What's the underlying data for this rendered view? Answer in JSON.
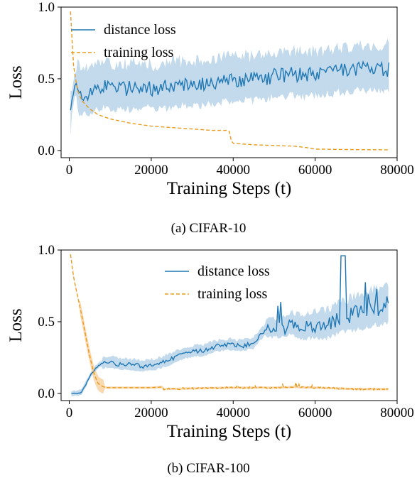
{
  "chart_data": [
    {
      "type": "line",
      "caption": "(a) CIFAR-10",
      "xlabel": "Training Steps (t)",
      "ylabel": "Loss",
      "xlim": [
        -2000,
        80000
      ],
      "ylim": [
        -0.05,
        1.0
      ],
      "xticks": [
        "0",
        "20000",
        "40000",
        "60000",
        "80000"
      ],
      "yticks": [
        "0.0",
        "0.5",
        "1.0"
      ],
      "grid": false,
      "legend": "top-left",
      "colors": {
        "distance": "#1f77b4",
        "distance_band": "#aecde6",
        "training": "#e89b1e"
      },
      "series": [
        {
          "name": "distance loss",
          "style": "solid",
          "band": true,
          "x": [
            300,
            1500,
            3000,
            6000,
            9000,
            12000,
            15000,
            18000,
            21000,
            24000,
            27000,
            30000,
            33000,
            36000,
            39000,
            42000,
            45000,
            48000,
            51000,
            54000,
            57000,
            60000,
            63000,
            66000,
            69000,
            72000,
            75000,
            78000
          ],
          "y": [
            0.3,
            0.46,
            0.38,
            0.43,
            0.45,
            0.43,
            0.44,
            0.45,
            0.43,
            0.44,
            0.46,
            0.46,
            0.46,
            0.48,
            0.49,
            0.5,
            0.49,
            0.51,
            0.52,
            0.53,
            0.52,
            0.53,
            0.54,
            0.55,
            0.56,
            0.57,
            0.56,
            0.57
          ]
        },
        {
          "name": "training loss",
          "style": "dashed",
          "band": false,
          "x": [
            300,
            1000,
            2000,
            3000,
            5000,
            7000,
            10000,
            15000,
            20000,
            25000,
            30000,
            35000,
            39000,
            39500,
            40000,
            45000,
            50000,
            55000,
            58000,
            60000,
            65000,
            70000,
            78000
          ],
          "y": [
            0.97,
            0.6,
            0.42,
            0.35,
            0.29,
            0.25,
            0.22,
            0.19,
            0.17,
            0.16,
            0.15,
            0.14,
            0.14,
            0.07,
            0.05,
            0.04,
            0.035,
            0.03,
            0.02,
            0.01,
            0.008,
            0.006,
            0.005
          ]
        }
      ]
    },
    {
      "type": "line",
      "caption": "(b) CIFAR-100",
      "xlabel": "Training Steps (t)",
      "ylabel": "Loss",
      "xlim": [
        -2000,
        80000
      ],
      "ylim": [
        -0.05,
        1.0
      ],
      "xticks": [
        "0",
        "20000",
        "40000",
        "60000",
        "80000"
      ],
      "yticks": [
        "0.0",
        "0.5",
        "1.0"
      ],
      "grid": false,
      "legend": "top-center",
      "colors": {
        "distance": "#1f77b4",
        "distance_band": "#aecde6",
        "training": "#e89b1e",
        "training_band": "#f6c98f"
      },
      "series": [
        {
          "name": "distance loss",
          "style": "solid",
          "band": true,
          "x": [
            500,
            2000,
            3000,
            4000,
            5000,
            6000,
            7000,
            8000,
            10000,
            12000,
            15000,
            18000,
            21000,
            24000,
            27000,
            30000,
            33000,
            36000,
            39000,
            42000,
            45000,
            48000,
            51000,
            54000,
            57000,
            60000,
            63000,
            66000,
            69000,
            72000,
            75000,
            78000
          ],
          "y": [
            0.0,
            0.0,
            0.01,
            0.06,
            0.12,
            0.16,
            0.19,
            0.21,
            0.22,
            0.2,
            0.2,
            0.19,
            0.2,
            0.23,
            0.27,
            0.29,
            0.3,
            0.33,
            0.34,
            0.33,
            0.35,
            0.45,
            0.46,
            0.48,
            0.46,
            0.47,
            0.48,
            0.52,
            0.55,
            0.57,
            0.6,
            0.62
          ]
        },
        {
          "name": "training loss",
          "style": "dashed",
          "band": true,
          "x": [
            300,
            1000,
            2000,
            3000,
            4000,
            5000,
            6000,
            7000,
            8000,
            9000,
            10000,
            15000,
            20000,
            22800,
            23000,
            30000,
            40000,
            45000,
            50000,
            55000,
            60000,
            65000,
            70000,
            78000
          ],
          "y": [
            0.97,
            0.82,
            0.68,
            0.55,
            0.4,
            0.26,
            0.14,
            0.07,
            0.05,
            0.04,
            0.04,
            0.04,
            0.04,
            0.045,
            0.03,
            0.035,
            0.04,
            0.04,
            0.04,
            0.045,
            0.04,
            0.035,
            0.03,
            0.03
          ]
        }
      ]
    }
  ]
}
